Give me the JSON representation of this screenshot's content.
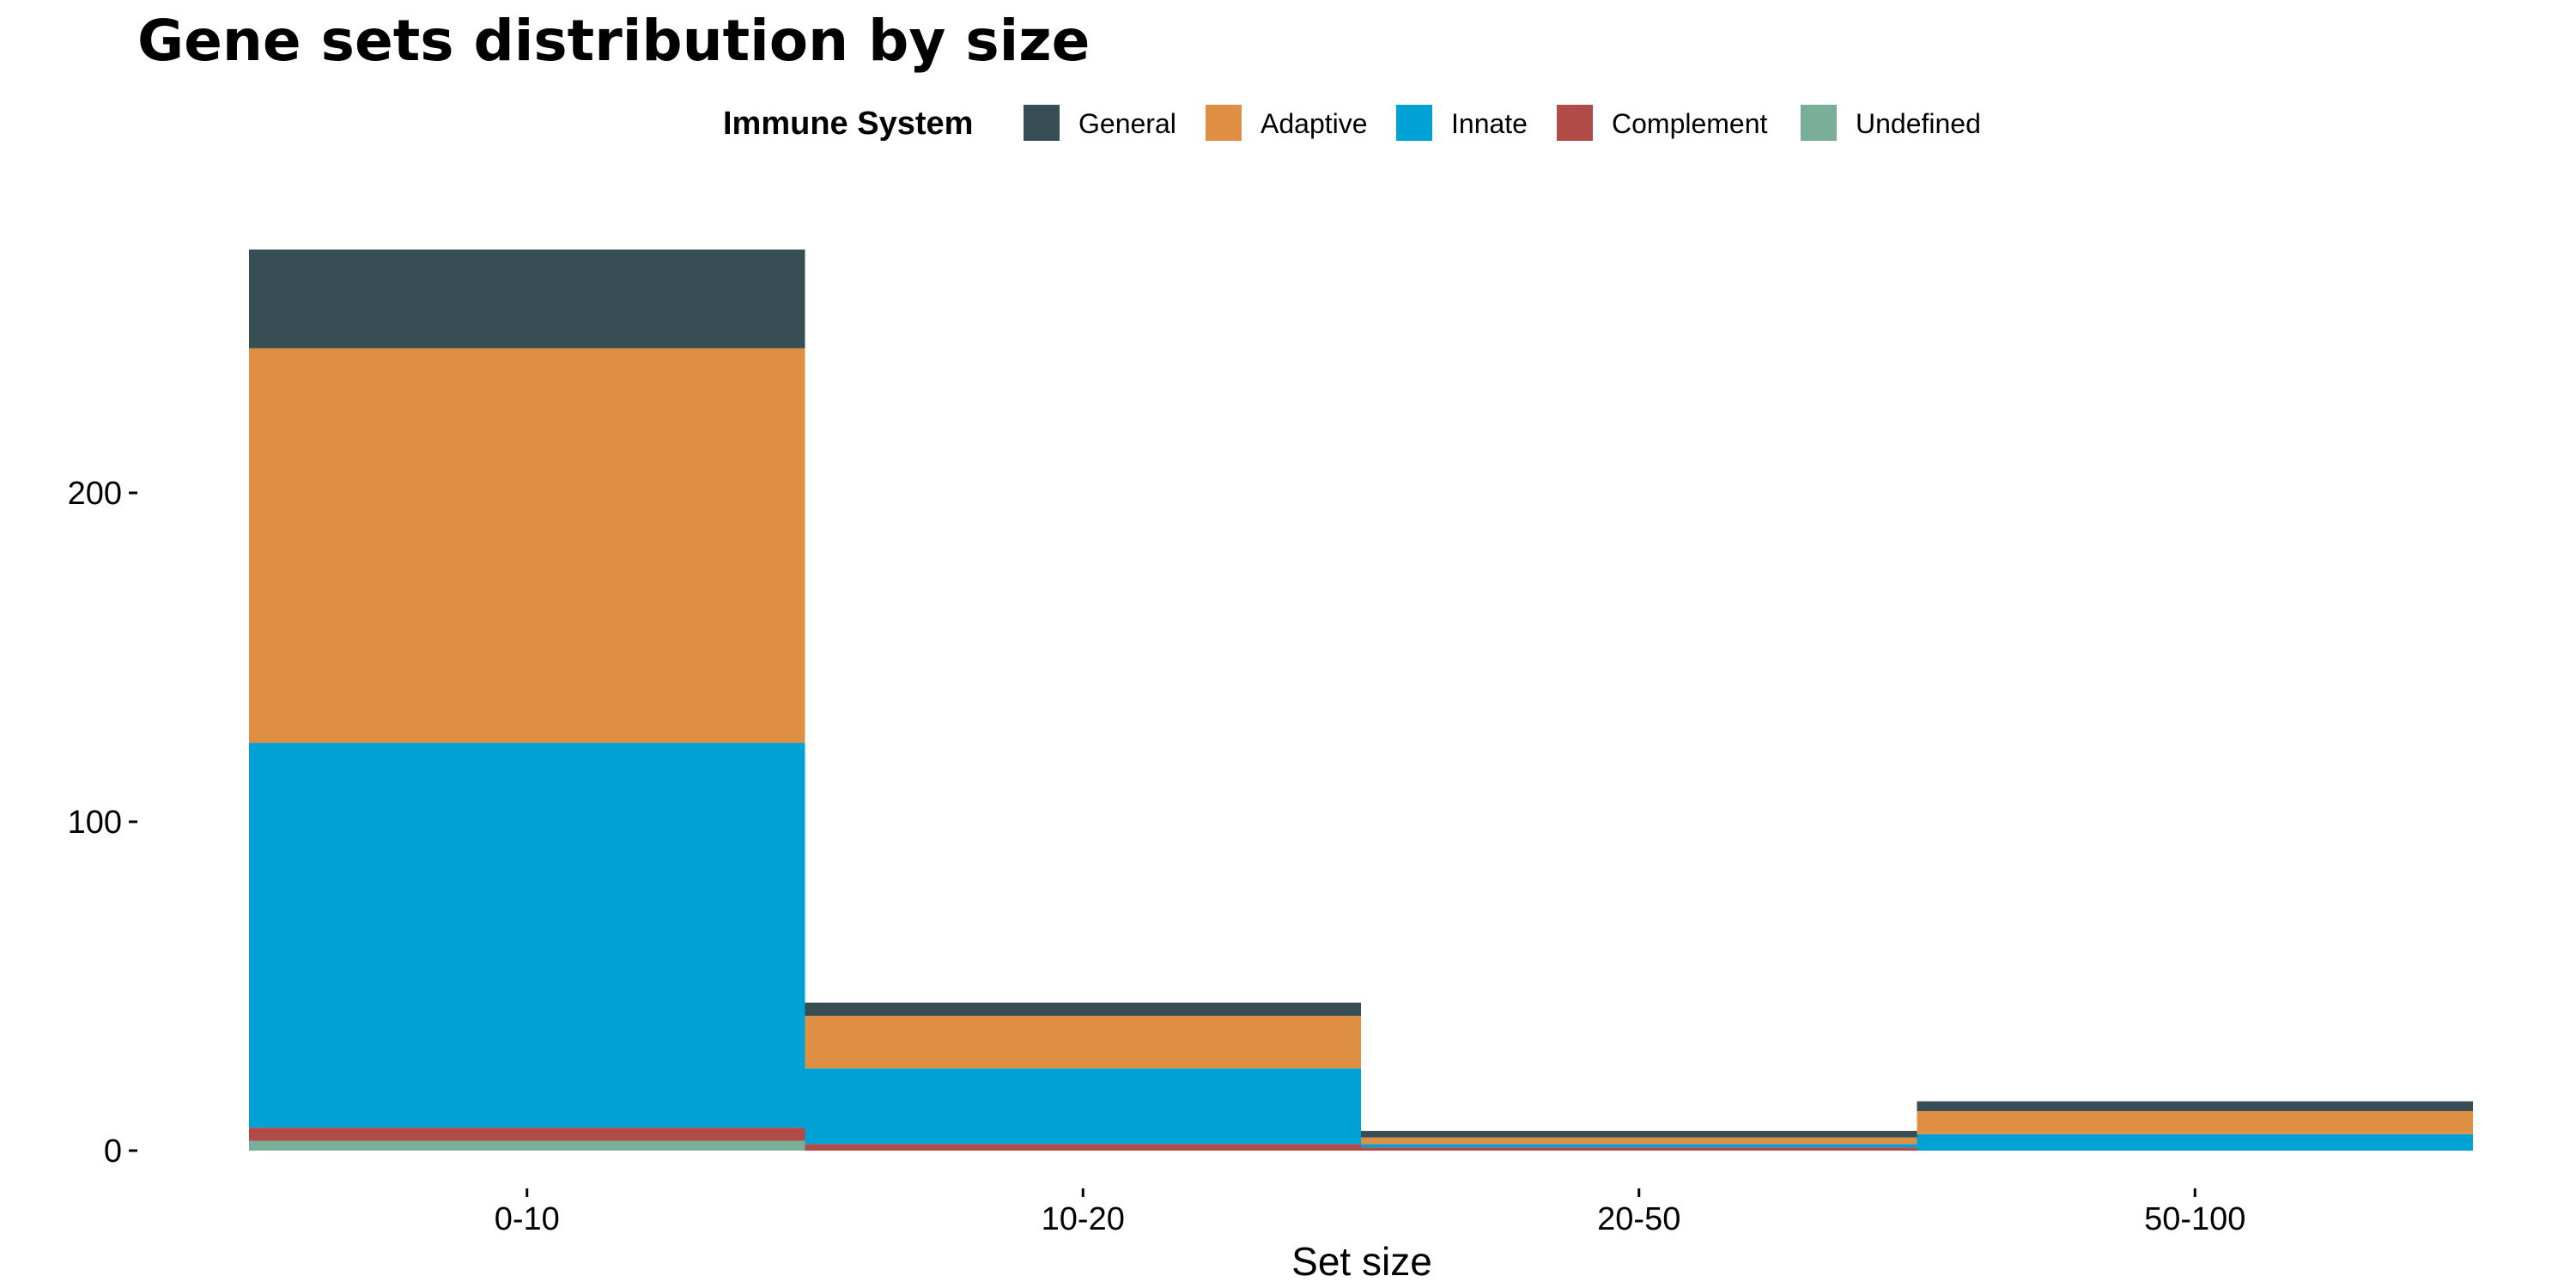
{
  "chart_data": {
    "type": "bar",
    "stacked": true,
    "title": "Gene sets distribution by size",
    "xlabel": "Set size",
    "ylabel": "",
    "categories": [
      "0-10",
      "10-20",
      "20-50",
      "50-100"
    ],
    "ylim": [
      0,
      280
    ],
    "yticks": [
      0,
      100,
      200
    ],
    "grid": false,
    "legend": {
      "title": "Immune System",
      "position": "top"
    },
    "series": [
      {
        "name": "Undefined",
        "color": "#7BAE98",
        "values": [
          3,
          0,
          0,
          0
        ]
      },
      {
        "name": "Complement",
        "color": "#B14B48",
        "values": [
          4,
          2,
          1,
          0
        ]
      },
      {
        "name": "Innate",
        "color": "#00A1D5",
        "values": [
          117,
          23,
          1,
          5
        ]
      },
      {
        "name": "Adaptive",
        "color": "#DF8F44",
        "values": [
          120,
          16,
          2,
          7
        ]
      },
      {
        "name": "General",
        "color": "#374E55",
        "values": [
          30,
          4,
          2,
          3
        ]
      }
    ],
    "legend_order": [
      "General",
      "Adaptive",
      "Innate",
      "Complement",
      "Undefined"
    ]
  }
}
